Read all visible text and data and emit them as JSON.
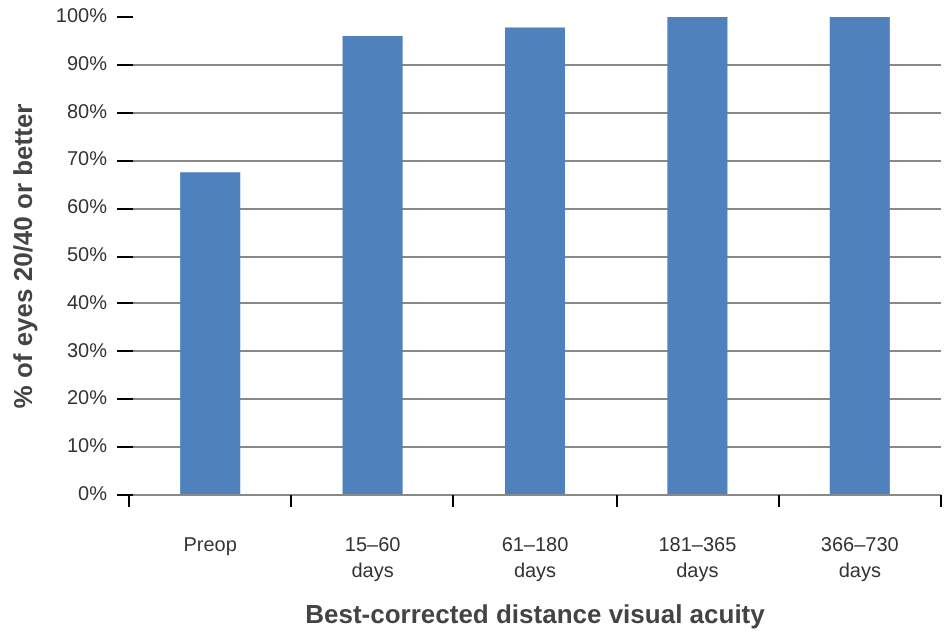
{
  "chart_data": {
    "type": "bar",
    "xlabel": "Best-corrected distance visual acuity",
    "ylabel": "% of eyes 20/40 or better",
    "categories": [
      "Preop",
      "15–60 days",
      "61–180 days",
      "181–365 days",
      "366–730 days"
    ],
    "values": [
      67.5,
      96,
      97.8,
      100,
      100
    ],
    "color": "#4f81bd",
    "ylim": [
      0,
      100
    ],
    "yticks": [
      {
        "value": 0,
        "label": "0%"
      },
      {
        "value": 10,
        "label": "10%"
      },
      {
        "value": 20,
        "label": "20%"
      },
      {
        "value": 30,
        "label": "30%"
      },
      {
        "value": 40,
        "label": "40%"
      },
      {
        "value": 50,
        "label": "50%"
      },
      {
        "value": 60,
        "label": "60%"
      },
      {
        "value": 70,
        "label": "70%"
      },
      {
        "value": 80,
        "label": "80%"
      },
      {
        "value": 90,
        "label": "90%"
      },
      {
        "value": 100,
        "label": "100%"
      }
    ],
    "grid": "y"
  }
}
